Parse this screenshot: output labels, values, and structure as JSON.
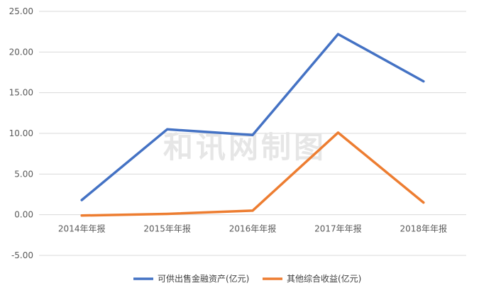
{
  "chart_data": {
    "type": "line",
    "categories": [
      "2014年年报",
      "2015年年报",
      "2016年年报",
      "2017年年报",
      "2018年年报"
    ],
    "series": [
      {
        "name": "可供出售金融资产(亿元)",
        "color": "#4472c4",
        "values": [
          1.8,
          10.5,
          9.8,
          22.2,
          16.4
        ]
      },
      {
        "name": "其他综合收益(亿元)",
        "color": "#ed7d31",
        "values": [
          -0.1,
          0.1,
          0.5,
          10.1,
          1.5
        ]
      }
    ],
    "ylim": [
      -5,
      25
    ],
    "yticks": [
      "25.00",
      "20.00",
      "15.00",
      "10.00",
      "5.00",
      "0.00",
      "-5.00"
    ],
    "ytick_values": [
      25,
      20,
      15,
      10,
      5,
      0,
      -5
    ],
    "grid": true,
    "legend_position": "bottom",
    "watermark": "和讯网制图"
  }
}
